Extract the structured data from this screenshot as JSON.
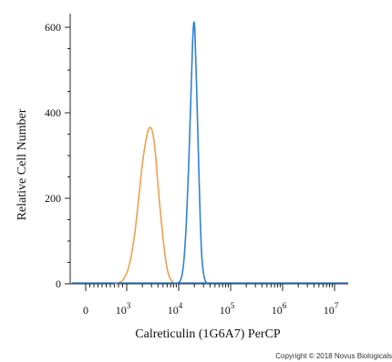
{
  "chart_data": {
    "type": "line",
    "xlabel": "Calreticulin (1G6A7) PerCP",
    "ylabel": "Relative Cell Number",
    "x_scale": "biexponential",
    "xlim": [
      -1000,
      10000000
    ],
    "ylim": [
      0,
      630
    ],
    "x_ticks": [
      {
        "base": "0",
        "exp": ""
      },
      {
        "base": "10",
        "exp": "3"
      },
      {
        "base": "10",
        "exp": "4"
      },
      {
        "base": "10",
        "exp": "5"
      },
      {
        "base": "10",
        "exp": "6"
      },
      {
        "base": "10",
        "exp": "7"
      }
    ],
    "y_ticks": [
      "0",
      "200",
      "400",
      "600"
    ],
    "grid": false,
    "series": [
      {
        "color": "#f0a050",
        "points": [
          [
            700,
            0
          ],
          [
            900,
            8
          ],
          [
            1100,
            40
          ],
          [
            1400,
            110
          ],
          [
            1700,
            200
          ],
          [
            2000,
            280
          ],
          [
            2300,
            330
          ],
          [
            2600,
            360
          ],
          [
            2900,
            365
          ],
          [
            3200,
            350
          ],
          [
            3600,
            300
          ],
          [
            4000,
            230
          ],
          [
            4600,
            150
          ],
          [
            5300,
            80
          ],
          [
            6000,
            35
          ],
          [
            7000,
            10
          ],
          [
            8500,
            0
          ]
        ]
      },
      {
        "color": "#2f80d8",
        "points": [
          [
            9000,
            0
          ],
          [
            11000,
            10
          ],
          [
            12500,
            50
          ],
          [
            14000,
            140
          ],
          [
            15500,
            270
          ],
          [
            17000,
            420
          ],
          [
            18500,
            560
          ],
          [
            19500,
            610
          ],
          [
            20500,
            590
          ],
          [
            22000,
            470
          ],
          [
            24000,
            300
          ],
          [
            26000,
            150
          ],
          [
            28000,
            60
          ],
          [
            31000,
            15
          ],
          [
            35000,
            0
          ]
        ]
      }
    ]
  },
  "copyright": "Copyright © 2018 Novus Biologicals"
}
